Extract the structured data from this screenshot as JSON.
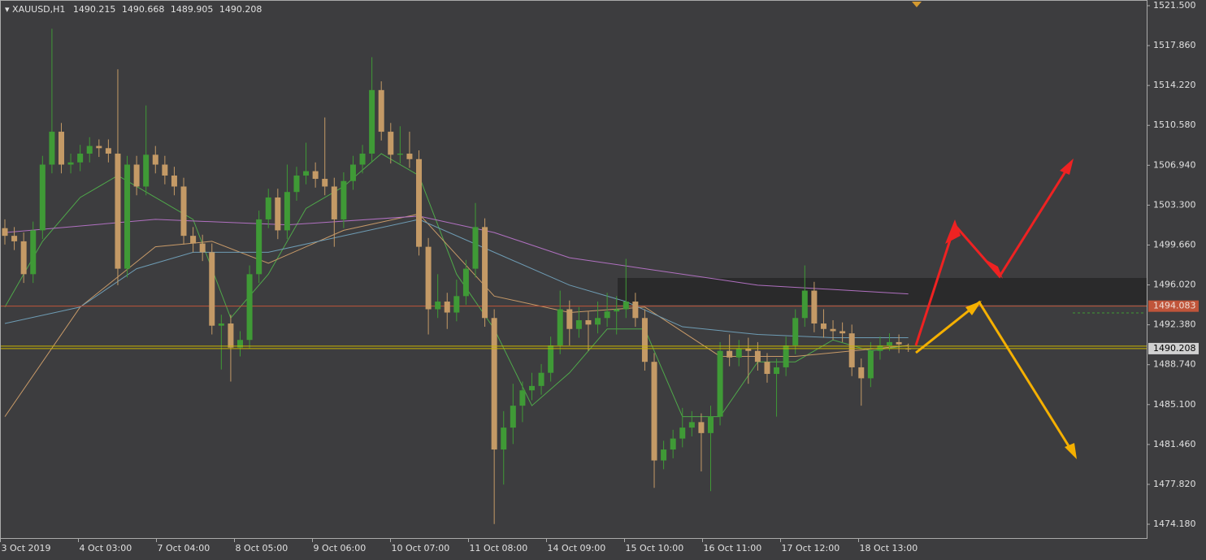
{
  "chart_data": {
    "type": "candlestick",
    "symbol": "XAUUSD,H1",
    "up_color": "#3f9a36",
    "down_color": "#c49a66",
    "ylim": [
      1472.92,
      1522.02
    ],
    "yticks": [
      {
        "value": 1521.5,
        "label": "1521.500"
      },
      {
        "value": 1517.86,
        "label": "1517.860"
      },
      {
        "value": 1514.22,
        "label": "1514.220"
      },
      {
        "value": 1510.58,
        "label": "1510.580"
      },
      {
        "value": 1506.94,
        "label": "1506.940"
      },
      {
        "value": 1503.3,
        "label": "1503.300"
      },
      {
        "value": 1499.66,
        "label": "1499.660"
      },
      {
        "value": 1496.02,
        "label": "1496.020"
      },
      {
        "value": 1492.38,
        "label": "1492.380"
      },
      {
        "value": 1488.74,
        "label": "1488.740"
      },
      {
        "value": 1485.1,
        "label": "1485.100"
      },
      {
        "value": 1481.46,
        "label": "1481.460"
      },
      {
        "value": 1477.82,
        "label": "1477.820"
      },
      {
        "value": 1474.18,
        "label": "1474.180"
      }
    ],
    "categories": [
      "3 Oct 2019",
      "4 Oct 03:00",
      "7 Oct 04:00",
      "8 Oct 05:00",
      "9 Oct 06:00",
      "10 Oct 07:00",
      "11 Oct 08:00",
      "14 Oct 09:00",
      "15 Oct 10:00",
      "16 Oct 11:00",
      "17 Oct 12:00",
      "18 Oct 13:00"
    ],
    "candles": [
      [
        1501.2,
        1502,
        1499.7,
        1500.5
      ],
      [
        1500.5,
        1501.3,
        1499.2,
        1500
      ],
      [
        1500,
        1500.8,
        1496.2,
        1497
      ],
      [
        1497,
        1501.8,
        1496.2,
        1501
      ],
      [
        1501,
        1507.8,
        1500.2,
        1507
      ],
      [
        1507,
        1519.4,
        1506.2,
        1510
      ],
      [
        1510,
        1510.8,
        1506.2,
        1507
      ],
      [
        1507,
        1508,
        1506.2,
        1507.2
      ],
      [
        1507.2,
        1508.8,
        1506.4,
        1508
      ],
      [
        1508,
        1509.5,
        1507.2,
        1508.7
      ],
      [
        1508.7,
        1509.3,
        1507.7,
        1508.5
      ],
      [
        1508.5,
        1509.3,
        1507.2,
        1508
      ],
      [
        1508,
        1515.7,
        1496,
        1497.5
      ],
      [
        1497.5,
        1507.8,
        1496.7,
        1507
      ],
      [
        1507,
        1507.8,
        1504.2,
        1505
      ],
      [
        1505,
        1512.4,
        1504.2,
        1507.9
      ],
      [
        1507.9,
        1508.7,
        1506.2,
        1507
      ],
      [
        1507,
        1507.8,
        1505.2,
        1506
      ],
      [
        1506,
        1506.8,
        1504.2,
        1505
      ],
      [
        1505,
        1505.8,
        1499.7,
        1500.5
      ],
      [
        1500.5,
        1501.3,
        1499,
        1499.8
      ],
      [
        1499.8,
        1500.6,
        1498.2,
        1499
      ],
      [
        1499,
        1499.8,
        1491.5,
        1492.3
      ],
      [
        1492.3,
        1493.3,
        1488.3,
        1492.5
      ],
      [
        1492.5,
        1493.3,
        1487.2,
        1490.3
      ],
      [
        1490.3,
        1491.8,
        1489.5,
        1491
      ],
      [
        1491,
        1497.8,
        1490.2,
        1497
      ],
      [
        1497,
        1502.8,
        1496.2,
        1502
      ],
      [
        1502,
        1504.8,
        1501.2,
        1504
      ],
      [
        1504,
        1504.8,
        1500.2,
        1501
      ],
      [
        1501,
        1507,
        1500.2,
        1504.5
      ],
      [
        1504.5,
        1506.8,
        1503.7,
        1506
      ],
      [
        1506,
        1509,
        1505.2,
        1506.4
      ],
      [
        1506.4,
        1507.2,
        1504.9,
        1505.7
      ],
      [
        1505.7,
        1511.3,
        1504.2,
        1505
      ],
      [
        1505,
        1505.8,
        1499.5,
        1502
      ],
      [
        1502,
        1506.3,
        1501.2,
        1505.5
      ],
      [
        1505.5,
        1507.8,
        1504.7,
        1507
      ],
      [
        1507,
        1508.8,
        1506.2,
        1508
      ],
      [
        1508,
        1516.8,
        1507.2,
        1513.8
      ],
      [
        1513.8,
        1514.6,
        1509.2,
        1510
      ],
      [
        1510,
        1510.8,
        1507.1,
        1507.9
      ],
      [
        1507.9,
        1510.5,
        1507.1,
        1508
      ],
      [
        1508,
        1510,
        1506.7,
        1507.5
      ],
      [
        1507.5,
        1508.3,
        1498.7,
        1499.5
      ],
      [
        1499.5,
        1500.3,
        1491.5,
        1493.8
      ],
      [
        1493.8,
        1497,
        1493,
        1494.5
      ],
      [
        1494.5,
        1495.3,
        1492,
        1493.5
      ],
      [
        1493.5,
        1496.5,
        1492.7,
        1495
      ],
      [
        1495,
        1498.3,
        1494.2,
        1497.5
      ],
      [
        1497.5,
        1503.5,
        1496.7,
        1501.3
      ],
      [
        1501.3,
        1502.1,
        1492.2,
        1493
      ],
      [
        1493,
        1493.8,
        1474.2,
        1481
      ],
      [
        1481,
        1484.5,
        1477.8,
        1483
      ],
      [
        1483,
        1487,
        1481.5,
        1485
      ],
      [
        1485,
        1487.2,
        1483.5,
        1486.4
      ],
      [
        1486.4,
        1488,
        1485.5,
        1486.8
      ],
      [
        1486.8,
        1488.8,
        1486,
        1488
      ],
      [
        1488,
        1491.3,
        1487.2,
        1490.5
      ],
      [
        1490.5,
        1495.5,
        1489.7,
        1493.8
      ],
      [
        1493.8,
        1494.6,
        1490.5,
        1492
      ],
      [
        1492,
        1494,
        1491.2,
        1492.8
      ],
      [
        1492.8,
        1493.6,
        1490,
        1492.4
      ],
      [
        1492.4,
        1494.5,
        1491.6,
        1493
      ],
      [
        1493,
        1495.3,
        1492.2,
        1493.6
      ],
      [
        1493.6,
        1495,
        1491.5,
        1493.8
      ],
      [
        1493.8,
        1498.4,
        1493,
        1494.5
      ],
      [
        1494.5,
        1495.3,
        1492.2,
        1493
      ],
      [
        1493,
        1493.8,
        1488.2,
        1489
      ],
      [
        1489,
        1489.8,
        1477.5,
        1480
      ],
      [
        1480,
        1481.8,
        1479.2,
        1481
      ],
      [
        1481,
        1482.8,
        1480.2,
        1482
      ],
      [
        1482,
        1484.8,
        1481.2,
        1483
      ],
      [
        1483,
        1484.5,
        1482.2,
        1483.5
      ],
      [
        1483.5,
        1484.3,
        1479,
        1482.5
      ],
      [
        1482.5,
        1485,
        1477.2,
        1484
      ],
      [
        1484,
        1490.8,
        1483.2,
        1490
      ],
      [
        1490,
        1491.5,
        1488.6,
        1489.4
      ],
      [
        1489.4,
        1491,
        1488.6,
        1490.2
      ],
      [
        1490.2,
        1491.2,
        1487,
        1490
      ],
      [
        1490,
        1490.8,
        1488.2,
        1489
      ],
      [
        1489,
        1489.8,
        1487.1,
        1487.9
      ],
      [
        1487.9,
        1489.3,
        1484,
        1488.5
      ],
      [
        1488.5,
        1491.3,
        1487.7,
        1490.5
      ],
      [
        1490.5,
        1493.8,
        1489.7,
        1493
      ],
      [
        1493,
        1497.8,
        1492.2,
        1495.5
      ],
      [
        1495.5,
        1496.3,
        1491.7,
        1492.5
      ],
      [
        1492.5,
        1493.8,
        1491.2,
        1492
      ],
      [
        1492,
        1492.8,
        1491,
        1491.8
      ],
      [
        1491.8,
        1492.6,
        1490.8,
        1491.6
      ],
      [
        1491.6,
        1492.4,
        1487.7,
        1488.5
      ],
      [
        1488.5,
        1489.3,
        1485,
        1487.5
      ],
      [
        1487.5,
        1490.8,
        1486.7,
        1490
      ],
      [
        1490,
        1491.3,
        1489.2,
        1490.5
      ],
      [
        1490.5,
        1491.6,
        1490,
        1490.8
      ],
      [
        1490.8,
        1491.5,
        1489.8,
        1490.6
      ],
      [
        1490.215,
        1490.668,
        1489.905,
        1490.208
      ]
    ],
    "moving_averages": [
      {
        "color": "#4fa84a",
        "points": [
          [
            0,
            1494
          ],
          [
            4,
            1500
          ],
          [
            8,
            1504
          ],
          [
            12,
            1506
          ],
          [
            16,
            1504
          ],
          [
            20,
            1502
          ],
          [
            24,
            1493
          ],
          [
            28,
            1497
          ],
          [
            32,
            1503
          ],
          [
            36,
            1505
          ],
          [
            40,
            1508
          ],
          [
            44,
            1506
          ],
          [
            48,
            1497
          ],
          [
            52,
            1492
          ],
          [
            56,
            1485
          ],
          [
            60,
            1488
          ],
          [
            64,
            1492
          ],
          [
            68,
            1492
          ],
          [
            72,
            1484
          ],
          [
            76,
            1484
          ],
          [
            80,
            1489
          ],
          [
            84,
            1489
          ],
          [
            88,
            1491
          ],
          [
            92,
            1490
          ],
          [
            96,
            1490.5
          ]
        ]
      },
      {
        "color": "#c89a68",
        "points": [
          [
            0,
            1484
          ],
          [
            8,
            1494
          ],
          [
            16,
            1499.5
          ],
          [
            22,
            1500
          ],
          [
            28,
            1498
          ],
          [
            36,
            1501
          ],
          [
            44,
            1502.5
          ],
          [
            52,
            1495
          ],
          [
            60,
            1493.5
          ],
          [
            68,
            1494
          ],
          [
            76,
            1489.5
          ],
          [
            84,
            1489.5
          ],
          [
            96,
            1490.5
          ]
        ]
      },
      {
        "color": "#6e9cb4",
        "points": [
          [
            0,
            1492.5
          ],
          [
            8,
            1494
          ],
          [
            14,
            1497.5
          ],
          [
            20,
            1499
          ],
          [
            28,
            1499
          ],
          [
            36,
            1500.5
          ],
          [
            44,
            1502
          ],
          [
            52,
            1499
          ],
          [
            60,
            1496
          ],
          [
            66,
            1494.5
          ],
          [
            72,
            1492.2
          ],
          [
            80,
            1491.5
          ],
          [
            88,
            1491.2
          ],
          [
            96,
            1491.2
          ]
        ]
      },
      {
        "color": "#b070c0",
        "points": [
          [
            0,
            1500.8
          ],
          [
            16,
            1502
          ],
          [
            30,
            1501.5
          ],
          [
            44,
            1502.3
          ],
          [
            52,
            1500.8
          ],
          [
            60,
            1498.5
          ],
          [
            68,
            1497.5
          ],
          [
            80,
            1496
          ],
          [
            96,
            1495.2
          ]
        ]
      }
    ],
    "levels": [
      {
        "value": 1494.083,
        "color": "#c0553a"
      }
    ],
    "bid_color": "#c8b400"
  }
}
